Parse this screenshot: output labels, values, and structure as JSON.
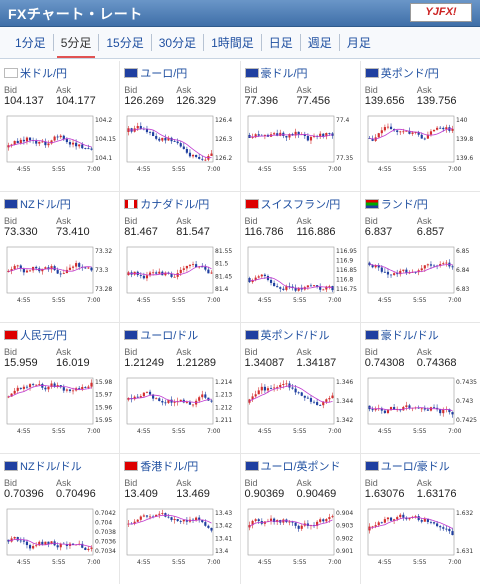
{
  "header": {
    "title": "FXチャート・レート",
    "logo_text": "YJFX!"
  },
  "tabs": [
    "1分足",
    "5分足",
    "15分足",
    "30分足",
    "1時間足",
    "日足",
    "週足",
    "月足"
  ],
  "active_tab": 1,
  "bid_label": "Bid",
  "ask_label": "Ask",
  "cards": [
    {
      "pair": "米ドル/円",
      "flag": "us-flag",
      "bid": "104.137",
      "ask": "104.177",
      "yticks": [
        "104.2",
        "104.15",
        "104.1"
      ],
      "xticks": [
        "4:55",
        "5:55",
        "7:00"
      ]
    },
    {
      "pair": "ユーロ/円",
      "flag": "eu-flag",
      "bid": "126.269",
      "ask": "126.329",
      "yticks": [
        "126.4",
        "126.3",
        "126.2"
      ],
      "xticks": [
        "4:55",
        "5:55",
        "7:00"
      ]
    },
    {
      "pair": "豪ドル/円",
      "flag": "au-flag",
      "bid": "77.396",
      "ask": "77.456",
      "yticks": [
        "77.4",
        "77.35"
      ],
      "xticks": [
        "4:55",
        "5:55",
        "7:00"
      ]
    },
    {
      "pair": "英ポンド/円",
      "flag": "gb-flag",
      "bid": "139.656",
      "ask": "139.756",
      "yticks": [
        "140",
        "139.8",
        "139.6"
      ],
      "xticks": [
        "4:55",
        "5:55",
        "7:00"
      ]
    },
    {
      "pair": "NZドル/円",
      "flag": "nz-flag",
      "bid": "73.330",
      "ask": "73.410",
      "yticks": [
        "73.32",
        "73.3",
        "73.28"
      ],
      "xticks": [
        "4:55",
        "5:55",
        "7:00"
      ]
    },
    {
      "pair": "カナダドル/円",
      "flag": "ca-flag",
      "bid": "81.467",
      "ask": "81.547",
      "yticks": [
        "81.55",
        "81.5",
        "81.45",
        "81.4"
      ],
      "xticks": [
        "4:55",
        "5:55",
        "7:00"
      ]
    },
    {
      "pair": "スイスフラン/円",
      "flag": "ch-flag",
      "bid": "116.786",
      "ask": "116.886",
      "yticks": [
        "116.95",
        "116.9",
        "116.85",
        "116.8",
        "116.75"
      ],
      "xticks": [
        "4:55",
        "5:55",
        "7:00"
      ]
    },
    {
      "pair": "ランド/円",
      "flag": "za-flag",
      "bid": "6.837",
      "ask": "6.857",
      "yticks": [
        "6.85",
        "6.84",
        "6.83"
      ],
      "xticks": [
        "4:55",
        "5:55",
        "7:00"
      ]
    },
    {
      "pair": "人民元/円",
      "flag": "cn-flag",
      "bid": "15.959",
      "ask": "16.019",
      "yticks": [
        "15.98",
        "15.97",
        "15.96",
        "15.95"
      ],
      "xticks": [
        "4:55",
        "5:55",
        "7:00"
      ]
    },
    {
      "pair": "ユーロ/ドル",
      "flag": "eu-flag",
      "bid": "1.21249",
      "ask": "1.21289",
      "yticks": [
        "1.214",
        "1.213",
        "1.212",
        "1.211"
      ],
      "xticks": [
        "4:55",
        "5:55",
        "7:00"
      ]
    },
    {
      "pair": "英ポンド/ドル",
      "flag": "gb-flag",
      "bid": "1.34087",
      "ask": "1.34187",
      "yticks": [
        "1.346",
        "1.344",
        "1.342"
      ],
      "xticks": [
        "4:55",
        "5:55",
        "7:00"
      ]
    },
    {
      "pair": "豪ドル/ドル",
      "flag": "au-flag",
      "bid": "0.74308",
      "ask": "0.74368",
      "yticks": [
        "0.7435",
        "0.743",
        "0.7425"
      ],
      "xticks": [
        "4:55",
        "5:55",
        "7:00"
      ]
    },
    {
      "pair": "NZドル/ドル",
      "flag": "nz-flag",
      "bid": "0.70396",
      "ask": "0.70496",
      "yticks": [
        "0.7042",
        "0.704",
        "0.7038",
        "0.7036",
        "0.7034"
      ],
      "xticks": [
        "4:55",
        "5:55",
        "7:00"
      ]
    },
    {
      "pair": "香港ドル/円",
      "flag": "hk-flag",
      "bid": "13.409",
      "ask": "13.469",
      "yticks": [
        "13.43",
        "13.42",
        "13.41",
        "13.4"
      ],
      "xticks": [
        "4:55",
        "5:55",
        "7:00"
      ]
    },
    {
      "pair": "ユーロ/英ポンド",
      "flag": "eu-flag",
      "bid": "0.90369",
      "ask": "0.90469",
      "yticks": [
        "0.904",
        "0.903",
        "0.902",
        "0.901"
      ],
      "xticks": [
        "4:55",
        "5:55",
        "7:00"
      ]
    },
    {
      "pair": "ユーロ/豪ドル",
      "flag": "eu-flag",
      "bid": "1.63076",
      "ask": "1.63176",
      "yticks": [
        "1.632",
        "1.631"
      ],
      "xticks": [
        "4:55",
        "5:55",
        "7:00"
      ]
    }
  ],
  "colors": {
    "up": "#d32f2f",
    "down": "#1f3fa0",
    "ma": "#c03ad0"
  }
}
